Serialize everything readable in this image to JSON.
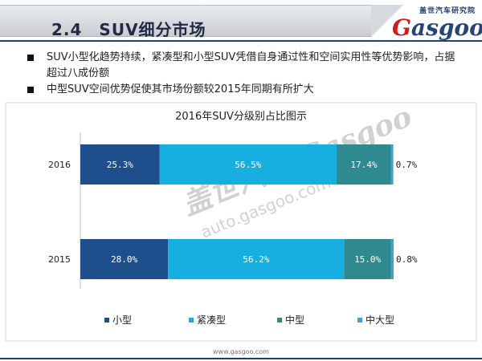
{
  "header": {
    "section_title": "2.4　SUV细分市场",
    "logo_cn": "盖世汽车研究院",
    "logo_en": "asgoo",
    "logo_en_initial": "G"
  },
  "bullets": [
    "SUV小型化趋势持续，紧凑型和小型SUV凭借自身通过性和空间实用性等优势影响，占据超过八成份额",
    "中型SUV空间优势促使其市场份额较2015年同期有所扩大"
  ],
  "chart_data": {
    "type": "bar",
    "orientation": "horizontal",
    "stacked": true,
    "percent": true,
    "title": "2016年SUV分级别占比图示",
    "categories": [
      "2016",
      "2015"
    ],
    "series": [
      {
        "name": "小型",
        "values": [
          25.3,
          28.0
        ],
        "labels": [
          "25.3%",
          "28.0%"
        ],
        "color": "#1f4e8c"
      },
      {
        "name": "紧凑型",
        "values": [
          56.5,
          56.2
        ],
        "labels": [
          "56.5%",
          "56.2%"
        ],
        "color": "#17aee0"
      },
      {
        "name": "中型",
        "values": [
          17.4,
          15.0
        ],
        "labels": [
          "17.4%",
          "15.0%"
        ],
        "color": "#2f8a8f"
      },
      {
        "name": "中大型",
        "values": [
          0.7,
          0.8
        ],
        "labels": [
          "0.7%",
          "0.8%"
        ],
        "color": "#3fa2d6"
      }
    ],
    "legend_position": "bottom",
    "grid": false,
    "watermark": {
      "brand": "盖世汽车 Gasgoo",
      "url": "auto.gasgoo.com"
    }
  },
  "footer": {
    "url": "www.gasgoo.com"
  }
}
